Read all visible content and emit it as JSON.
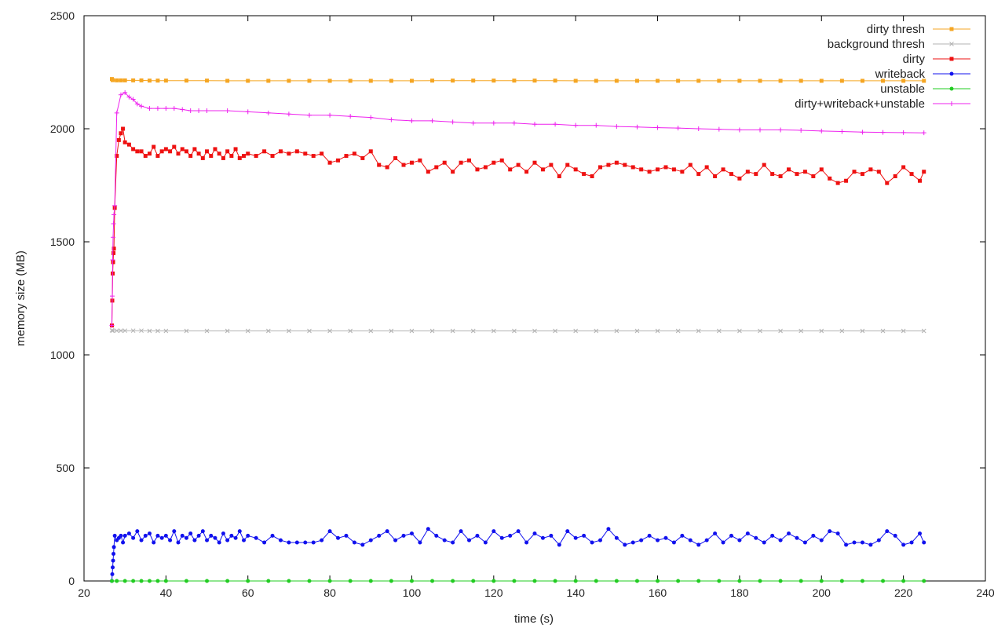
{
  "chart_data": {
    "type": "line",
    "title": "",
    "xlabel": "time (s)",
    "ylabel": "memory size (MB)",
    "xlim": [
      20,
      240
    ],
    "ylim": [
      0,
      2500
    ],
    "xticks": [
      20,
      40,
      60,
      80,
      100,
      120,
      140,
      160,
      180,
      200,
      220,
      240
    ],
    "yticks": [
      0,
      500,
      1000,
      1500,
      2000,
      2500
    ],
    "grid": false,
    "legend": "top-right",
    "series": [
      {
        "name": "dirty thresh",
        "color": "#f5a623",
        "marker": "square",
        "x": [
          26.8,
          27,
          28,
          29,
          30,
          32,
          34,
          36,
          38,
          40,
          45,
          50,
          55,
          60,
          65,
          70,
          75,
          80,
          85,
          90,
          95,
          100,
          105,
          110,
          115,
          120,
          125,
          130,
          135,
          140,
          145,
          150,
          155,
          160,
          165,
          170,
          175,
          180,
          185,
          190,
          195,
          200,
          205,
          210,
          215,
          220,
          225
        ],
        "values": [
          2220,
          2215,
          2214,
          2214,
          2214,
          2214,
          2214,
          2213,
          2213,
          2213,
          2213,
          2213,
          2212,
          2212,
          2212,
          2212,
          2212,
          2212,
          2212,
          2212,
          2212,
          2212,
          2213,
          2213,
          2213,
          2213,
          2213,
          2213,
          2213,
          2212,
          2212,
          2212,
          2212,
          2212,
          2212,
          2212,
          2212,
          2212,
          2212,
          2212,
          2212,
          2212,
          2212,
          2212,
          2212,
          2212,
          2212
        ]
      },
      {
        "name": "background thresh",
        "color": "#b3b3b3",
        "marker": "x",
        "x": [
          26.8,
          27,
          28,
          29,
          30,
          32,
          34,
          36,
          38,
          40,
          45,
          50,
          55,
          60,
          65,
          70,
          75,
          80,
          85,
          90,
          95,
          100,
          105,
          110,
          115,
          120,
          125,
          130,
          135,
          140,
          145,
          150,
          155,
          160,
          165,
          170,
          175,
          180,
          185,
          190,
          195,
          200,
          205,
          210,
          215,
          220,
          225
        ],
        "values": [
          1108,
          1107,
          1107,
          1107,
          1107,
          1107,
          1107,
          1106,
          1106,
          1106,
          1106,
          1106,
          1106,
          1106,
          1106,
          1106,
          1106,
          1106,
          1106,
          1106,
          1106,
          1106,
          1106,
          1106,
          1106,
          1106,
          1106,
          1106,
          1106,
          1106,
          1106,
          1106,
          1106,
          1106,
          1106,
          1106,
          1106,
          1106,
          1106,
          1106,
          1106,
          1106,
          1106,
          1106,
          1106,
          1106,
          1106
        ]
      },
      {
        "name": "dirty",
        "color": "#ee1111",
        "marker": "square",
        "x": [
          26.8,
          26.9,
          27,
          27.1,
          27.2,
          27.3,
          27.5,
          28,
          28.5,
          29,
          29.5,
          30,
          31,
          32,
          33,
          34,
          35,
          36,
          37,
          38,
          39,
          40,
          41,
          42,
          43,
          44,
          45,
          46,
          47,
          48,
          49,
          50,
          51,
          52,
          53,
          54,
          55,
          56,
          57,
          58,
          59,
          60,
          62,
          64,
          66,
          68,
          70,
          72,
          74,
          76,
          78,
          80,
          82,
          84,
          86,
          88,
          90,
          92,
          94,
          96,
          98,
          100,
          102,
          104,
          106,
          108,
          110,
          112,
          114,
          116,
          118,
          120,
          122,
          124,
          126,
          128,
          130,
          132,
          134,
          136,
          138,
          140,
          142,
          144,
          146,
          148,
          150,
          152,
          154,
          156,
          158,
          160,
          162,
          164,
          166,
          168,
          170,
          172,
          174,
          176,
          178,
          180,
          182,
          184,
          186,
          188,
          190,
          192,
          194,
          196,
          198,
          200,
          202,
          204,
          206,
          208,
          210,
          212,
          214,
          216,
          218,
          220,
          222,
          224,
          225
        ],
        "values": [
          1130,
          1240,
          1360,
          1410,
          1450,
          1470,
          1650,
          1880,
          1950,
          1980,
          2000,
          1940,
          1930,
          1910,
          1900,
          1900,
          1880,
          1890,
          1920,
          1880,
          1900,
          1910,
          1900,
          1920,
          1890,
          1910,
          1900,
          1880,
          1910,
          1890,
          1870,
          1900,
          1880,
          1910,
          1890,
          1870,
          1900,
          1880,
          1910,
          1870,
          1880,
          1890,
          1880,
          1900,
          1880,
          1900,
          1890,
          1900,
          1890,
          1880,
          1890,
          1850,
          1860,
          1880,
          1890,
          1870,
          1900,
          1840,
          1830,
          1870,
          1840,
          1850,
          1860,
          1810,
          1830,
          1850,
          1810,
          1850,
          1860,
          1820,
          1830,
          1850,
          1860,
          1820,
          1840,
          1810,
          1850,
          1820,
          1840,
          1790,
          1840,
          1820,
          1800,
          1790,
          1830,
          1840,
          1850,
          1840,
          1830,
          1820,
          1810,
          1820,
          1830,
          1820,
          1810,
          1840,
          1800,
          1830,
          1790,
          1820,
          1800,
          1780,
          1810,
          1800,
          1840,
          1800,
          1790,
          1820,
          1800,
          1810,
          1790,
          1820,
          1780,
          1760,
          1770,
          1810,
          1800,
          1820,
          1810,
          1760,
          1790,
          1830,
          1800,
          1770,
          1810
        ]
      },
      {
        "name": "writeback",
        "color": "#1111ee",
        "marker": "circle",
        "x": [
          26.8,
          26.9,
          27,
          27.1,
          27.2,
          27.3,
          27.5,
          28,
          28.5,
          29,
          29.5,
          30,
          31,
          32,
          33,
          34,
          35,
          36,
          37,
          38,
          39,
          40,
          41,
          42,
          43,
          44,
          45,
          46,
          47,
          48,
          49,
          50,
          51,
          52,
          53,
          54,
          55,
          56,
          57,
          58,
          59,
          60,
          62,
          64,
          66,
          68,
          70,
          72,
          74,
          76,
          78,
          80,
          82,
          84,
          86,
          88,
          90,
          92,
          94,
          96,
          98,
          100,
          102,
          104,
          106,
          108,
          110,
          112,
          114,
          116,
          118,
          120,
          122,
          124,
          126,
          128,
          130,
          132,
          134,
          136,
          138,
          140,
          142,
          144,
          146,
          148,
          150,
          152,
          154,
          156,
          158,
          160,
          162,
          164,
          166,
          168,
          170,
          172,
          174,
          176,
          178,
          180,
          182,
          184,
          186,
          188,
          190,
          192,
          194,
          196,
          198,
          200,
          202,
          204,
          206,
          208,
          210,
          212,
          214,
          216,
          218,
          220,
          222,
          224,
          225
        ],
        "values": [
          0,
          30,
          60,
          90,
          120,
          150,
          200,
          180,
          190,
          200,
          170,
          200,
          210,
          190,
          220,
          180,
          200,
          210,
          170,
          200,
          190,
          200,
          180,
          220,
          170,
          200,
          190,
          210,
          180,
          200,
          220,
          180,
          200,
          190,
          170,
          210,
          180,
          200,
          190,
          220,
          180,
          200,
          190,
          170,
          200,
          180,
          170,
          170,
          170,
          170,
          180,
          220,
          190,
          200,
          170,
          160,
          180,
          200,
          220,
          180,
          200,
          210,
          170,
          230,
          200,
          180,
          170,
          220,
          180,
          200,
          170,
          220,
          190,
          200,
          220,
          170,
          210,
          190,
          200,
          160,
          220,
          190,
          200,
          170,
          180,
          230,
          190,
          160,
          170,
          180,
          200,
          180,
          190,
          170,
          200,
          180,
          160,
          180,
          210,
          170,
          200,
          180,
          210,
          190,
          170,
          200,
          180,
          210,
          190,
          170,
          200,
          180,
          220,
          210,
          160,
          170,
          170,
          160,
          180,
          220,
          200,
          160,
          170,
          210,
          170
        ]
      },
      {
        "name": "unstable",
        "color": "#22cc22",
        "marker": "circle",
        "x": [
          26.8,
          28,
          30,
          32,
          34,
          36,
          38,
          40,
          45,
          50,
          55,
          60,
          65,
          70,
          75,
          80,
          85,
          90,
          95,
          100,
          105,
          110,
          115,
          120,
          125,
          130,
          135,
          140,
          145,
          150,
          155,
          160,
          165,
          170,
          175,
          180,
          185,
          190,
          195,
          200,
          205,
          210,
          215,
          220,
          225
        ],
        "values": [
          0,
          0,
          0,
          0,
          0,
          0,
          0,
          0,
          0,
          0,
          0,
          0,
          0,
          0,
          0,
          0,
          0,
          0,
          0,
          0,
          0,
          0,
          0,
          0,
          0,
          0,
          0,
          0,
          0,
          0,
          0,
          0,
          0,
          0,
          0,
          0,
          0,
          0,
          0,
          0,
          0,
          0,
          0,
          0,
          0
        ]
      },
      {
        "name": "dirty+writeback+unstable",
        "color": "#ee22ee",
        "marker": "plus",
        "x": [
          26.8,
          26.9,
          27,
          27.1,
          27.2,
          27.3,
          27.5,
          28,
          29,
          30,
          31,
          32,
          33,
          34,
          36,
          38,
          40,
          42,
          44,
          46,
          48,
          50,
          55,
          60,
          65,
          70,
          75,
          80,
          85,
          90,
          95,
          100,
          105,
          110,
          115,
          120,
          125,
          130,
          135,
          140,
          145,
          150,
          155,
          160,
          165,
          170,
          175,
          180,
          185,
          190,
          195,
          200,
          205,
          210,
          215,
          220,
          225
        ],
        "values": [
          1130,
          1260,
          1420,
          1520,
          1580,
          1620,
          1660,
          2070,
          2150,
          2160,
          2140,
          2130,
          2110,
          2100,
          2090,
          2090,
          2090,
          2090,
          2085,
          2080,
          2080,
          2080,
          2080,
          2075,
          2070,
          2065,
          2060,
          2060,
          2055,
          2050,
          2040,
          2035,
          2035,
          2030,
          2025,
          2025,
          2025,
          2020,
          2020,
          2015,
          2015,
          2010,
          2008,
          2005,
          2003,
          2000,
          1998,
          1995,
          1995,
          1995,
          1993,
          1990,
          1988,
          1985,
          1984,
          1983,
          1982
        ]
      }
    ]
  }
}
